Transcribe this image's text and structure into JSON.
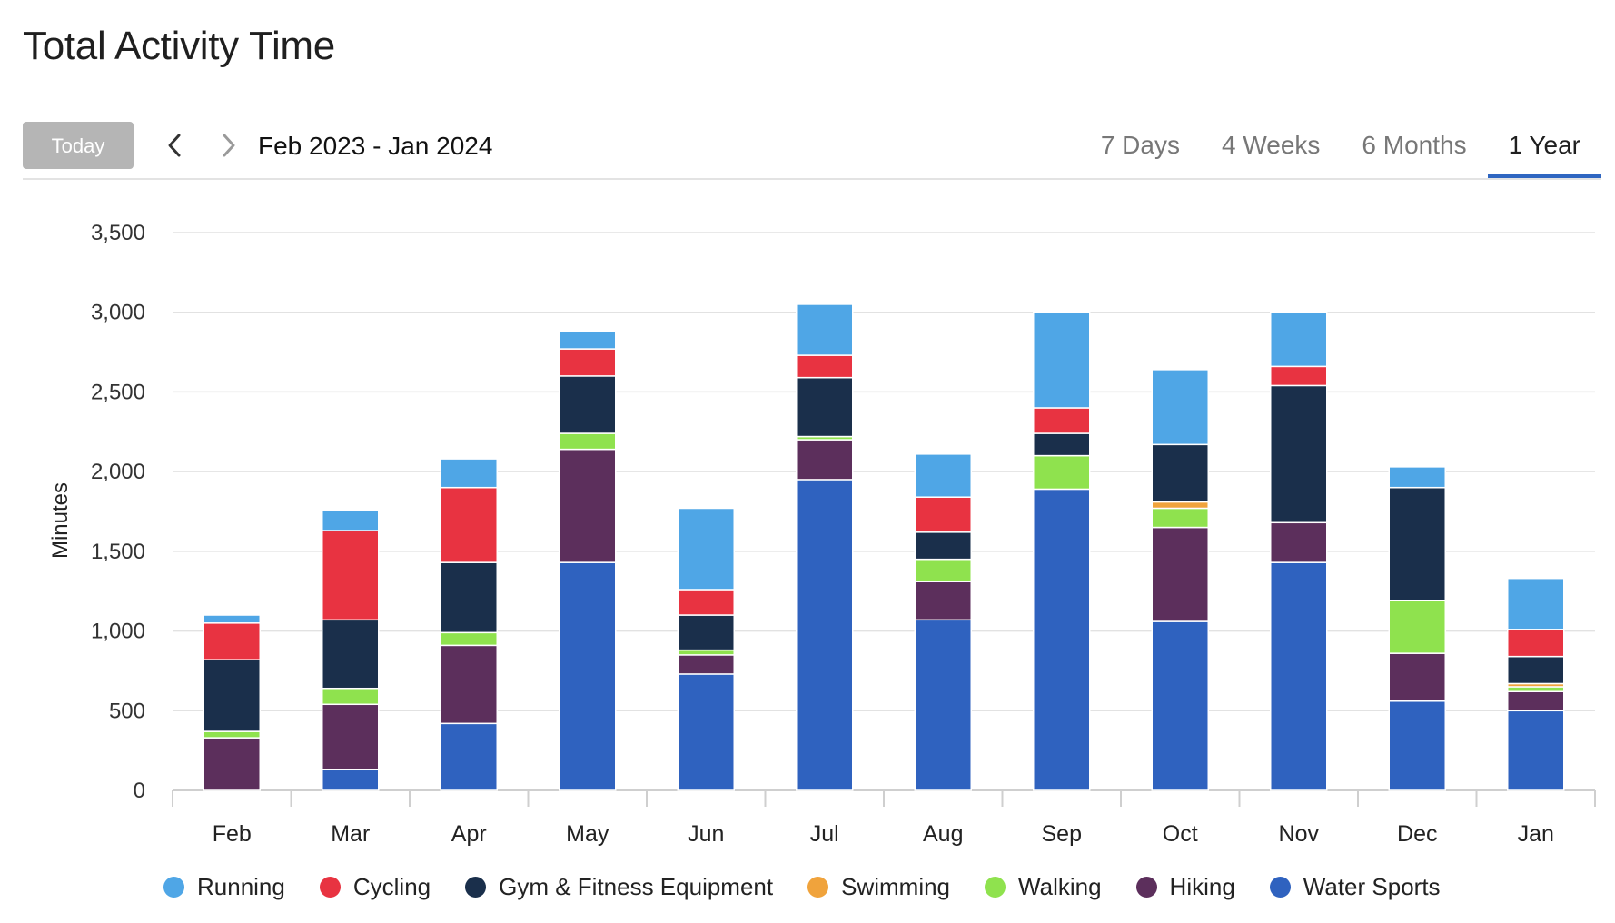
{
  "title": "Total Activity Time",
  "toolbar": {
    "today_label": "Today",
    "date_range": "Feb 2023 - Jan 2024",
    "tabs": [
      {
        "label": "7 Days",
        "active": false
      },
      {
        "label": "4 Weeks",
        "active": false
      },
      {
        "label": "6 Months",
        "active": false
      },
      {
        "label": "1 Year",
        "active": true
      }
    ]
  },
  "icons": {
    "prev": "chevron-left-icon",
    "next": "chevron-right-icon"
  },
  "colors": {
    "accent": "#2f66c1",
    "today_button": "#b5b5b5"
  },
  "chart_data": {
    "type": "bar",
    "stacked": true,
    "ylabel": "Minutes",
    "xlabel": "",
    "ylim": [
      0,
      3500
    ],
    "yticks": [
      0,
      500,
      1000,
      1500,
      2000,
      2500,
      3000,
      3500
    ],
    "ytick_labels": [
      "0",
      "500",
      "1,000",
      "1,500",
      "2,000",
      "2,500",
      "3,000",
      "3,500"
    ],
    "grid": true,
    "legend_position": "bottom",
    "categories": [
      "Feb",
      "Mar",
      "Apr",
      "May",
      "Jun",
      "Jul",
      "Aug",
      "Sep",
      "Oct",
      "Nov",
      "Dec",
      "Jan"
    ],
    "series": [
      {
        "name": "Water Sports",
        "color": "#2f62bf",
        "values": [
          0,
          130,
          420,
          1430,
          730,
          1950,
          1070,
          1890,
          1060,
          1430,
          560,
          500
        ]
      },
      {
        "name": "Hiking",
        "color": "#5c2f5c",
        "values": [
          330,
          410,
          490,
          710,
          120,
          250,
          240,
          0,
          590,
          250,
          300,
          120
        ]
      },
      {
        "name": "Walking",
        "color": "#8fe24e",
        "values": [
          40,
          100,
          80,
          100,
          30,
          20,
          140,
          210,
          120,
          0,
          330,
          30
        ]
      },
      {
        "name": "Swimming",
        "color": "#f0a33c",
        "values": [
          0,
          0,
          0,
          0,
          0,
          0,
          0,
          0,
          40,
          0,
          0,
          20
        ]
      },
      {
        "name": "Gym & Fitness Equipment",
        "color": "#1a2f4b",
        "values": [
          450,
          430,
          440,
          360,
          220,
          370,
          170,
          140,
          360,
          860,
          710,
          170
        ]
      },
      {
        "name": "Cycling",
        "color": "#e83341",
        "values": [
          230,
          560,
          470,
          170,
          160,
          140,
          220,
          160,
          0,
          120,
          0,
          170
        ]
      },
      {
        "name": "Running",
        "color": "#4fa6e6",
        "values": [
          50,
          130,
          180,
          110,
          510,
          320,
          270,
          600,
          470,
          340,
          130,
          320
        ]
      }
    ],
    "legend_order": [
      "Running",
      "Cycling",
      "Gym & Fitness Equipment",
      "Swimming",
      "Walking",
      "Hiking",
      "Water Sports"
    ]
  }
}
